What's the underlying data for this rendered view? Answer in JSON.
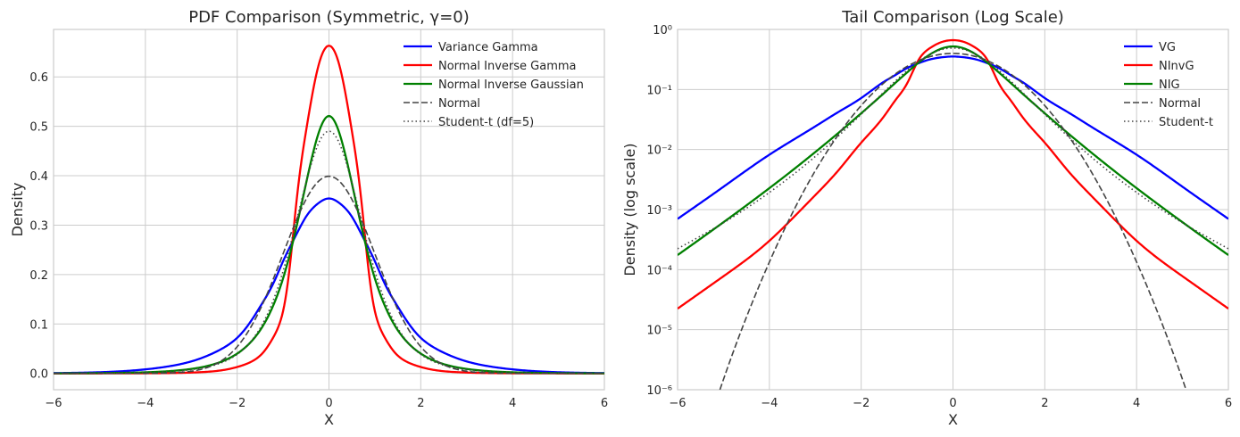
{
  "chart_data": [
    {
      "type": "line",
      "title": "PDF Comparison (Symmetric, γ=0)",
      "xlabel": "X",
      "ylabel": "Density",
      "xlim": [
        -6,
        6
      ],
      "ylim": [
        -0.033,
        0.696
      ],
      "yscale": "linear",
      "grid": true,
      "legend_position": "top-right",
      "xticks": [
        -6,
        -4,
        -2,
        0,
        2,
        4,
        6
      ],
      "xtick_labels": [
        "−6",
        "−4",
        "−2",
        "0",
        "2",
        "4",
        "6"
      ],
      "yticks": [
        0,
        0.1,
        0.2,
        0.3,
        0.4,
        0.5,
        0.6
      ],
      "ytick_labels": [
        "0.0",
        "0.1",
        "0.2",
        "0.3",
        "0.4",
        "0.5",
        "0.6"
      ],
      "x": [
        -6,
        -5,
        -4,
        -3.5,
        -3,
        -2.5,
        -2,
        -1.5,
        -1.25,
        -1,
        -0.75,
        -0.5,
        -0.25,
        0,
        0.25,
        0.5,
        0.75,
        1,
        1.25,
        1.5,
        2,
        2.5,
        3,
        3.5,
        4,
        5,
        6
      ],
      "series": [
        {
          "name": "Variance Gamma",
          "color": "#0000ff",
          "style": "solid",
          "values": [
            0.0007,
            0.0024,
            0.0082,
            0.0142,
            0.0243,
            0.042,
            0.072,
            0.135,
            0.175,
            0.227,
            0.274,
            0.317,
            0.343,
            0.354,
            0.343,
            0.317,
            0.274,
            0.227,
            0.175,
            0.135,
            0.072,
            0.042,
            0.0243,
            0.0142,
            0.0082,
            0.0024,
            0.0007
          ]
        },
        {
          "name": "Normal Inverse Gamma",
          "color": "#ff0000",
          "style": "solid",
          "values": [
            2.24e-05,
            7.76e-05,
            0.000302,
            0.000708,
            0.00174,
            0.00447,
            0.013,
            0.036,
            0.067,
            0.126,
            0.31,
            0.49,
            0.615,
            0.663,
            0.615,
            0.49,
            0.31,
            0.126,
            0.067,
            0.036,
            0.013,
            0.00447,
            0.00174,
            0.000708,
            0.000302,
            7.76e-05,
            2.24e-05
          ]
        },
        {
          "name": "Normal Inverse Gaussian",
          "color": "#008000",
          "style": "solid",
          "values": [
            0.0001748,
            0.000616,
            0.002275,
            0.00449,
            0.00908,
            0.0188,
            0.0401,
            0.0873,
            0.1299,
            0.1922,
            0.2797,
            0.3841,
            0.4793,
            0.5208,
            0.4793,
            0.3841,
            0.2797,
            0.1922,
            0.1299,
            0.0873,
            0.0401,
            0.0188,
            0.00908,
            0.00449,
            0.002275,
            0.000616,
            0.0001748
          ]
        },
        {
          "name": "Normal",
          "color": "#444444",
          "style": "dashed",
          "values": [
            6.076e-09,
            1.487e-06,
            0.0001338,
            0.000873,
            0.004432,
            0.01753,
            0.054,
            0.1295,
            0.1826,
            0.242,
            0.3011,
            0.3521,
            0.3867,
            0.3989,
            0.3867,
            0.3521,
            0.3011,
            0.242,
            0.1826,
            0.1295,
            0.054,
            0.01753,
            0.004432,
            0.000873,
            0.0001338,
            1.487e-06,
            6.076e-09
          ]
        },
        {
          "name": "Student-t (df=5)",
          "color": "#444444",
          "style": "dotted",
          "values": [
            0.000223,
            0.000603,
            0.001929,
            0.003731,
            0.007658,
            0.01672,
            0.03858,
            0.0915,
            0.1393,
            0.2068,
            0.2927,
            0.3855,
            0.4607,
            0.4901,
            0.4607,
            0.3855,
            0.2927,
            0.2068,
            0.1393,
            0.0915,
            0.03858,
            0.01672,
            0.007658,
            0.003731,
            0.001929,
            0.000603,
            0.000223
          ]
        }
      ]
    },
    {
      "type": "line",
      "title": "Tail Comparison (Log Scale)",
      "xlabel": "X",
      "ylabel": "Density (log scale)",
      "xlim": [
        -6,
        6
      ],
      "ylim": [
        1e-06,
        1
      ],
      "yscale": "log",
      "grid": true,
      "legend_position": "top-right",
      "xticks": [
        -6,
        -4,
        -2,
        0,
        2,
        4,
        6
      ],
      "xtick_labels": [
        "−6",
        "−4",
        "−2",
        "0",
        "2",
        "4",
        "6"
      ],
      "yticks": [
        1,
        0.1,
        0.01,
        0.001,
        0.0001,
        1e-05,
        1e-06
      ],
      "ytick_labels": [
        "10⁰",
        "10⁻¹",
        "10⁻²",
        "10⁻³",
        "10⁻⁴",
        "10⁻⁵",
        "10⁻⁶"
      ],
      "x": [
        -6,
        -5,
        -4,
        -3.5,
        -3,
        -2.5,
        -2,
        -1.5,
        -1.25,
        -1,
        -0.75,
        -0.5,
        -0.25,
        0,
        0.25,
        0.5,
        0.75,
        1,
        1.25,
        1.5,
        2,
        2.5,
        3,
        3.5,
        4,
        5,
        6
      ],
      "series": [
        {
          "name": "VG",
          "color": "#0000ff",
          "style": "solid",
          "values": [
            0.0007,
            0.0024,
            0.0082,
            0.0142,
            0.0243,
            0.042,
            0.072,
            0.135,
            0.175,
            0.227,
            0.274,
            0.317,
            0.343,
            0.354,
            0.343,
            0.317,
            0.274,
            0.227,
            0.175,
            0.135,
            0.072,
            0.042,
            0.0243,
            0.0142,
            0.0082,
            0.0024,
            0.0007
          ]
        },
        {
          "name": "NInvG",
          "color": "#ff0000",
          "style": "solid",
          "values": [
            2.24e-05,
            7.76e-05,
            0.000302,
            0.000708,
            0.00174,
            0.00447,
            0.013,
            0.036,
            0.067,
            0.126,
            0.31,
            0.49,
            0.615,
            0.663,
            0.615,
            0.49,
            0.31,
            0.126,
            0.067,
            0.036,
            0.013,
            0.00447,
            0.00174,
            0.000708,
            0.000302,
            7.76e-05,
            2.24e-05
          ]
        },
        {
          "name": "NIG",
          "color": "#008000",
          "style": "solid",
          "values": [
            0.0001748,
            0.000616,
            0.002275,
            0.00449,
            0.00908,
            0.0188,
            0.0401,
            0.0873,
            0.1299,
            0.1922,
            0.2797,
            0.3841,
            0.4793,
            0.5208,
            0.4793,
            0.3841,
            0.2797,
            0.1922,
            0.1299,
            0.0873,
            0.0401,
            0.0188,
            0.00908,
            0.00449,
            0.002275,
            0.000616,
            0.0001748
          ]
        },
        {
          "name": "Normal",
          "color": "#444444",
          "style": "dashed",
          "values": [
            6.076e-09,
            1.487e-06,
            0.0001338,
            0.000873,
            0.004432,
            0.01753,
            0.054,
            0.1295,
            0.1826,
            0.242,
            0.3011,
            0.3521,
            0.3867,
            0.3989,
            0.3867,
            0.3521,
            0.3011,
            0.242,
            0.1826,
            0.1295,
            0.054,
            0.01753,
            0.004432,
            0.000873,
            0.0001338,
            1.487e-06,
            6.076e-09
          ]
        },
        {
          "name": "Student-t",
          "color": "#444444",
          "style": "dotted",
          "values": [
            0.000223,
            0.000603,
            0.001929,
            0.003731,
            0.007658,
            0.01672,
            0.03858,
            0.0915,
            0.1393,
            0.2068,
            0.2927,
            0.3855,
            0.4607,
            0.4901,
            0.4607,
            0.3855,
            0.2927,
            0.2068,
            0.1393,
            0.0915,
            0.03858,
            0.01672,
            0.007658,
            0.003731,
            0.001929,
            0.000603,
            0.000223
          ]
        }
      ]
    }
  ]
}
